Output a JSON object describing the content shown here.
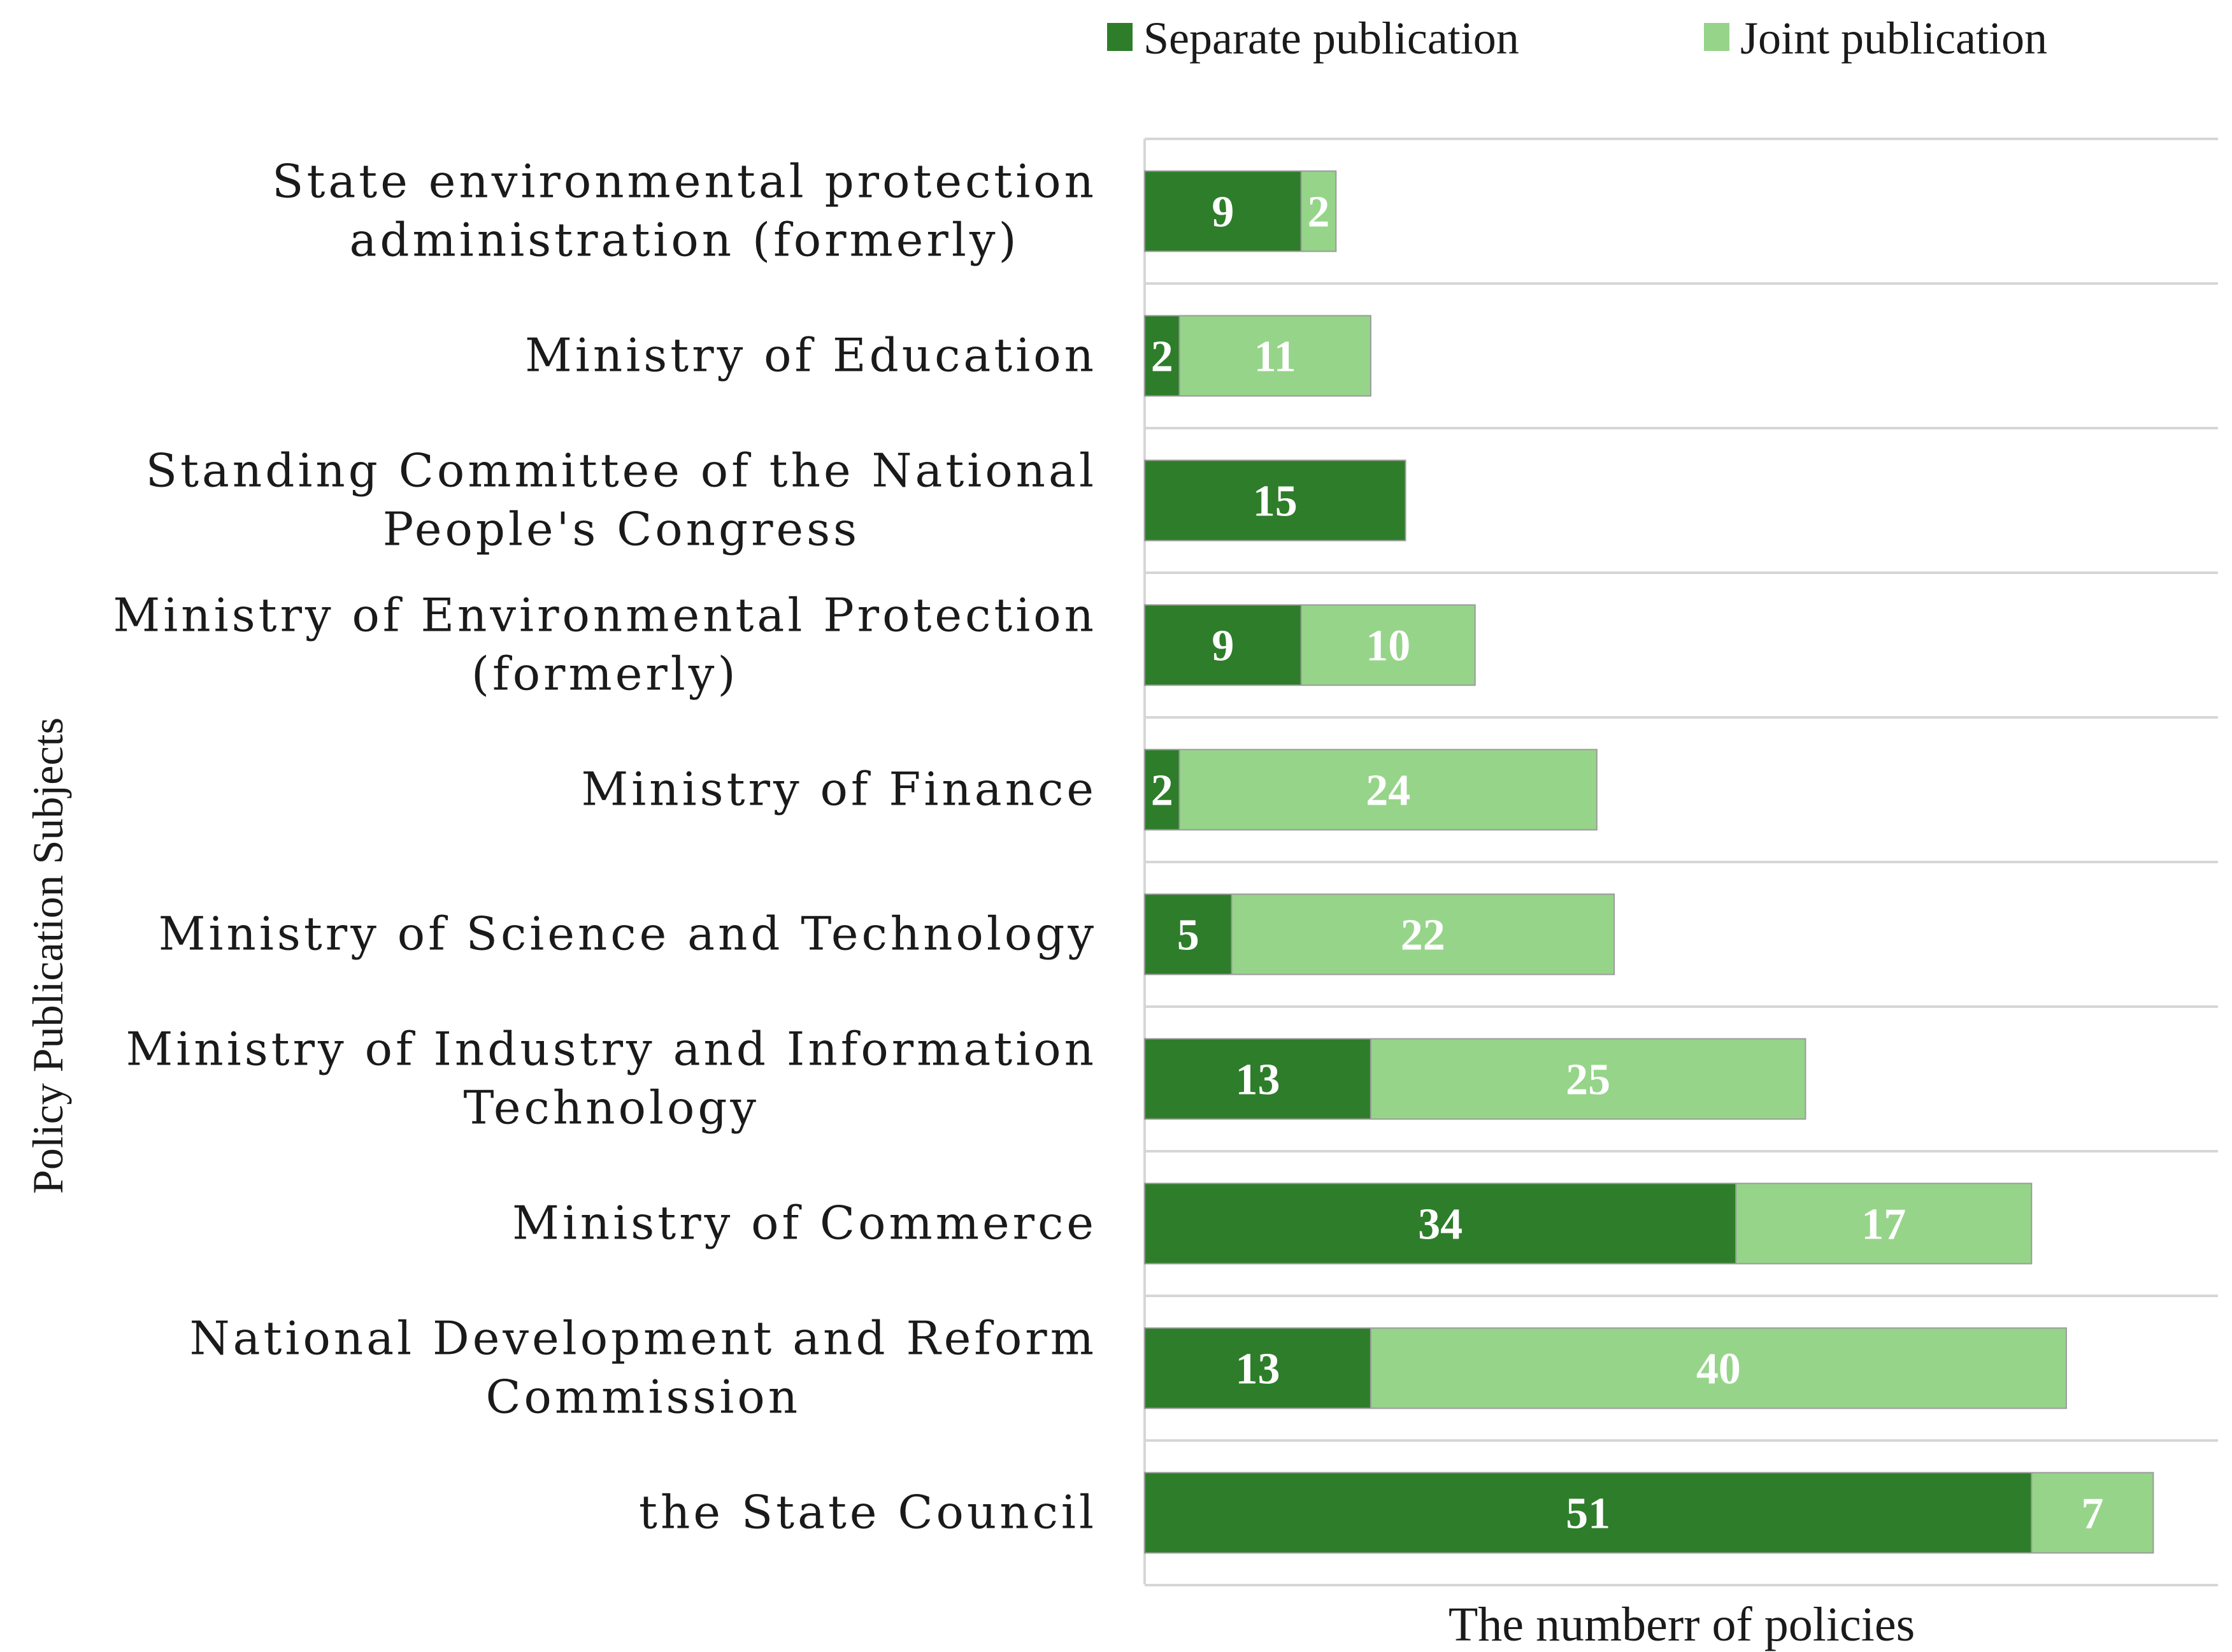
{
  "chart_data": {
    "type": "bar",
    "orientation": "horizontal",
    "stacked": true,
    "title": "",
    "xlabel": "The numberr of policies",
    "ylabel": "Policy Publication Subjects",
    "categories": [
      [
        "State environmental protection",
        "administration (formerly)"
      ],
      [
        "Ministry of Education"
      ],
      [
        "Standing Committee of the National",
        "People's Congress"
      ],
      [
        "Ministry of Environmental Protection",
        "(formerly)"
      ],
      [
        "Ministry of Finance"
      ],
      [
        "Ministry of Science and Technology"
      ],
      [
        "Ministry of Industry and Information",
        "Technology"
      ],
      [
        "Ministry of Commerce"
      ],
      [
        "National Development and Reform",
        "Commission"
      ],
      [
        "the State Council"
      ]
    ],
    "series": [
      {
        "name": "Separate publication",
        "color": "#2e7d2a",
        "values": [
          9,
          2,
          15,
          9,
          2,
          5,
          13,
          34,
          13,
          51
        ]
      },
      {
        "name": "Joint publication",
        "color": "#96d48a",
        "values": [
          2,
          11,
          0,
          10,
          24,
          22,
          25,
          17,
          40,
          7
        ]
      }
    ],
    "xlim": [
      0,
      70
    ],
    "grid": "horizontal separators",
    "legend_position": "top-right"
  }
}
